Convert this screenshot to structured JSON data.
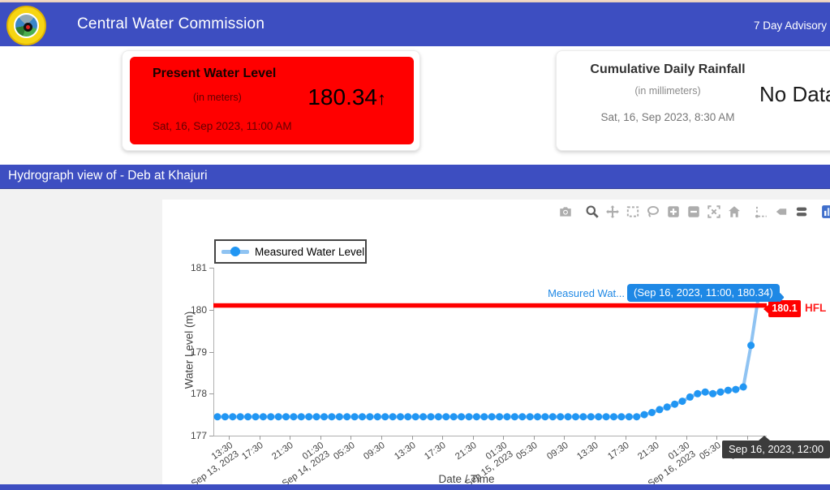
{
  "header": {
    "title": "Central Water Commission",
    "advisory_link": "7 Day Advisory",
    "logo": "cwc-emblem",
    "bg_color": "#3D4EC1"
  },
  "cards": {
    "water_level": {
      "title": "Present Water Level",
      "unit": "(in meters)",
      "value": "180.34",
      "trend_arrow": "↑",
      "timestamp": "Sat, 16, Sep 2023, 11:00 AM",
      "bg_color": "#FF0000"
    },
    "rainfall": {
      "title": "Cumulative Daily Rainfall",
      "unit": "(in millimeters)",
      "value": "No Data",
      "timestamp": "Sat, 16, Sep 2023, 8:30 AM"
    }
  },
  "banner": {
    "text": "Hydrograph view of - Deb at Khajuri"
  },
  "modebar": {
    "icons": [
      "camera-icon",
      "zoom-icon",
      "pan-icon",
      "box-select-icon",
      "lasso-icon",
      "zoom-in-icon",
      "zoom-out-icon",
      "autoscale-icon",
      "home-icon",
      "spikelines-icon",
      "hover-closest-icon",
      "hover-compare-icon",
      "plotly-logo-icon"
    ],
    "active": [
      "zoom-icon",
      "hover-compare-icon"
    ]
  },
  "colors": {
    "header_bg": "#3D4EC1",
    "card_alert_bg": "#FF0000",
    "hfl_color": "#FF0000",
    "series_line": "#8FC3F2",
    "series_marker": "#2196F3",
    "hover_bg": "#1E88E5",
    "axis_tooltip_bg": "#3C3C3C"
  },
  "chart_data": {
    "type": "line",
    "title": "",
    "xlabel": "Date / Time",
    "ylabel": "Water Level (m)",
    "ylim": [
      177,
      181
    ],
    "yticks": [
      177,
      178,
      179,
      180,
      181
    ],
    "grid": false,
    "legend_position": "top-left",
    "legend": [
      "Measured Water Level"
    ],
    "x_start": "Sep 13, 2023, 12:00",
    "x_interval": "1 hour",
    "xticks": [
      {
        "time": "13:30",
        "date": "Sep 13, 2023"
      },
      {
        "time": "17:30"
      },
      {
        "time": "21:30"
      },
      {
        "time": "01:30",
        "date": "Sep 14, 2023"
      },
      {
        "time": "05:30"
      },
      {
        "time": "09:30"
      },
      {
        "time": "13:30"
      },
      {
        "time": "17:30"
      },
      {
        "time": "21:30"
      },
      {
        "time": "01:30",
        "date": "Sep 15, 2023"
      },
      {
        "time": "05:30"
      },
      {
        "time": "09:30"
      },
      {
        "time": "13:30"
      },
      {
        "time": "17:30"
      },
      {
        "time": "21:30"
      },
      {
        "time": "01:30",
        "date": "Sep 16, 2023"
      },
      {
        "time": "05:30"
      },
      {
        "time": "09:30"
      }
    ],
    "series": [
      {
        "name": "Measured Water Level",
        "values": [
          177.45,
          177.45,
          177.45,
          177.45,
          177.45,
          177.45,
          177.45,
          177.45,
          177.45,
          177.45,
          177.45,
          177.45,
          177.45,
          177.45,
          177.45,
          177.45,
          177.45,
          177.45,
          177.45,
          177.45,
          177.45,
          177.45,
          177.45,
          177.45,
          177.45,
          177.45,
          177.45,
          177.45,
          177.45,
          177.45,
          177.45,
          177.45,
          177.45,
          177.45,
          177.45,
          177.45,
          177.45,
          177.45,
          177.45,
          177.45,
          177.45,
          177.45,
          177.45,
          177.45,
          177.45,
          177.45,
          177.45,
          177.45,
          177.45,
          177.45,
          177.45,
          177.45,
          177.45,
          177.45,
          177.45,
          177.45,
          177.5,
          177.55,
          177.62,
          177.68,
          177.75,
          177.82,
          177.92,
          178.0,
          178.04,
          178.0,
          178.04,
          178.08,
          178.1,
          178.16,
          179.15,
          180.34
        ]
      }
    ],
    "hfl": {
      "value": 180.1,
      "value_label": "180.1",
      "label": "HFL",
      "color": "#FF0000"
    },
    "hover": {
      "series_label": "Measured Wat...",
      "text": "(Sep 16, 2023, 11:00, 180.34)"
    },
    "axis_tooltip": "Sep 16, 2023, 12:00"
  }
}
